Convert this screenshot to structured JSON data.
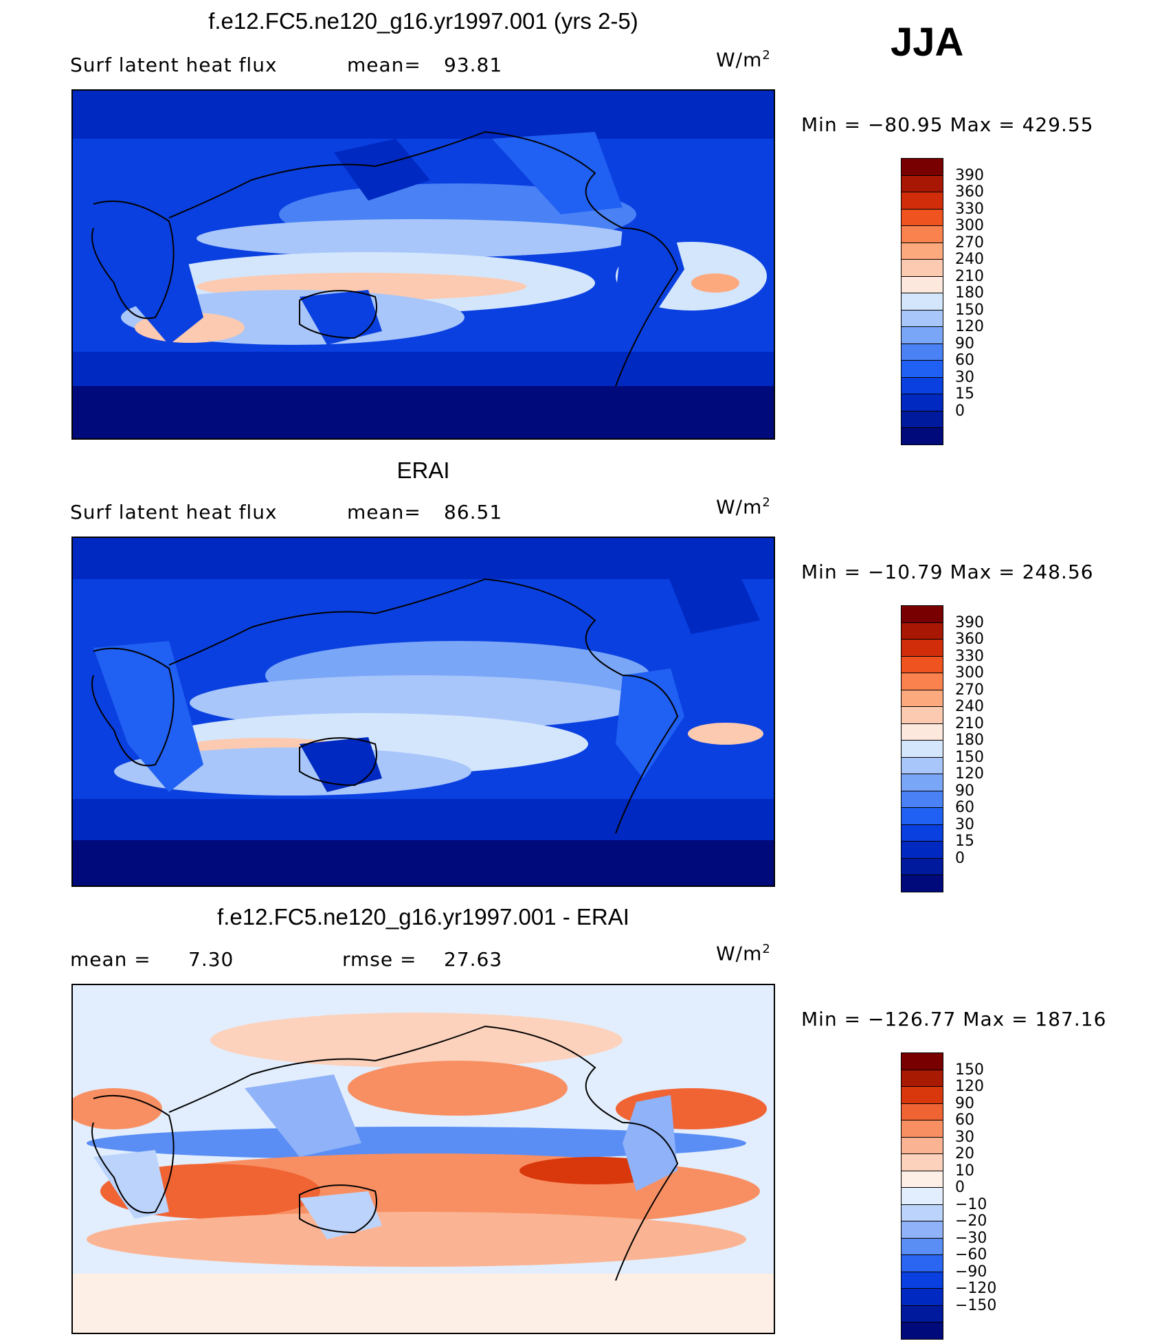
{
  "season": "JJA",
  "units_prefix": "W/m",
  "units_exp": "2",
  "panels": [
    {
      "title": "f.e12.FC5.ne120_g16.yr1997.001 (yrs 2-5)",
      "left_label": "Surf  latent  heat  flux",
      "stat_label": "mean=",
      "stat_value": "93.81",
      "range_text": "Min  =  −80.95  Max  =  429.55",
      "palette": "blues_to_reds",
      "colorbar_colors": [
        "#000a7a",
        "#001a9e",
        "#0029c2",
        "#0a40e0",
        "#2060f2",
        "#4a82f5",
        "#7aa6f7",
        "#a8c6fa",
        "#d4e6fc",
        "#fce8dc",
        "#fccab0",
        "#fca97e",
        "#f9824f",
        "#ef5420",
        "#d12d0b",
        "#a81703",
        "#780000"
      ],
      "colorbar_ticks": [
        "390",
        "360",
        "330",
        "300",
        "270",
        "240",
        "210",
        "180",
        "150",
        "120",
        "90",
        "60",
        "30",
        "15",
        "0"
      ]
    },
    {
      "title": "ERAI",
      "left_label": "Surf  latent  heat  flux",
      "stat_label": "mean=",
      "stat_value": "86.51",
      "range_text": "Min  =  −10.79  Max  =  248.56",
      "palette": "blues_to_reds",
      "colorbar_colors": [
        "#000a7a",
        "#001a9e",
        "#0029c2",
        "#0a40e0",
        "#2060f2",
        "#4a82f5",
        "#7aa6f7",
        "#a8c6fa",
        "#d4e6fc",
        "#fce8dc",
        "#fccab0",
        "#fca97e",
        "#f9824f",
        "#ef5420",
        "#d12d0b",
        "#a81703",
        "#780000"
      ],
      "colorbar_ticks": [
        "390",
        "360",
        "330",
        "300",
        "270",
        "240",
        "210",
        "180",
        "150",
        "120",
        "90",
        "60",
        "30",
        "15",
        "0"
      ]
    },
    {
      "title": "f.e12.FC5.ne120_g16.yr1997.001 - ERAI",
      "left_label": "mean  =",
      "left_value": "7.30",
      "stat_label": "rmse  =",
      "stat_value": "27.63",
      "range_text": "Min  =  −126.77  Max  =  187.16",
      "palette": "diverging",
      "colorbar_colors": [
        "#000a7a",
        "#001a9e",
        "#0029c2",
        "#0a40e0",
        "#2a66f2",
        "#5a8ef5",
        "#8fb2f8",
        "#bcd4fb",
        "#e2eefd",
        "#fdeee6",
        "#fcd2bd",
        "#fbb493",
        "#f88f62",
        "#f06434",
        "#d8380c",
        "#a81a02",
        "#780000"
      ],
      "colorbar_ticks": [
        "150",
        "120",
        "90",
        "60",
        "30",
        "20",
        "10",
        "0",
        "−10",
        "−20",
        "−30",
        "−60",
        "−90",
        "−120",
        "−150"
      ]
    }
  ]
}
